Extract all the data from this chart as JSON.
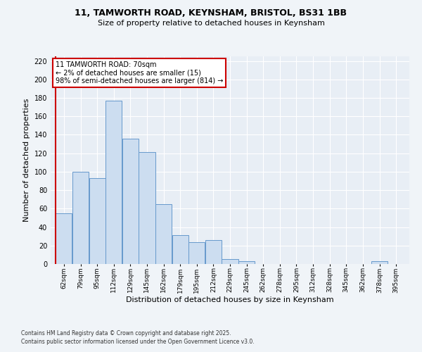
{
  "title": "11, TAMWORTH ROAD, KEYNSHAM, BRISTOL, BS31 1BB",
  "subtitle": "Size of property relative to detached houses in Keynsham",
  "xlabel": "Distribution of detached houses by size in Keynsham",
  "ylabel": "Number of detached properties",
  "bar_labels": [
    "62sqm",
    "79sqm",
    "95sqm",
    "112sqm",
    "129sqm",
    "145sqm",
    "162sqm",
    "179sqm",
    "195sqm",
    "212sqm",
    "229sqm",
    "245sqm",
    "262sqm",
    "278sqm",
    "295sqm",
    "312sqm",
    "328sqm",
    "345sqm",
    "362sqm",
    "378sqm",
    "395sqm"
  ],
  "bar_values": [
    55,
    100,
    93,
    177,
    136,
    121,
    65,
    31,
    24,
    26,
    5,
    3,
    0,
    0,
    0,
    0,
    0,
    0,
    0,
    3,
    0
  ],
  "bar_color": "#ccddf0",
  "bar_edge_color": "#6699cc",
  "ylim": [
    0,
    225
  ],
  "yticks": [
    0,
    20,
    40,
    60,
    80,
    100,
    120,
    140,
    160,
    180,
    200,
    220
  ],
  "property_line_color": "#cc0000",
  "annotation_title": "11 TAMWORTH ROAD: 70sqm",
  "annotation_line1": "← 2% of detached houses are smaller (15)",
  "annotation_line2": "98% of semi-detached houses are larger (814) →",
  "annotation_box_color": "#ffffff",
  "annotation_border_color": "#cc0000",
  "footnote1": "Contains HM Land Registry data © Crown copyright and database right 2025.",
  "footnote2": "Contains public sector information licensed under the Open Government Licence v3.0.",
  "background_color": "#f0f4f8",
  "axes_background": "#e8eef5",
  "grid_color": "#ffffff"
}
